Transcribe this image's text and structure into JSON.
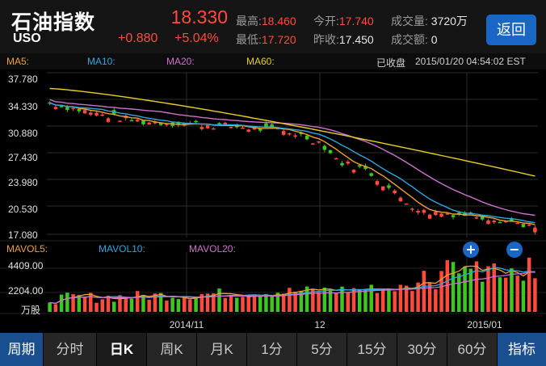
{
  "header": {
    "name": "石油指数",
    "code": "USO",
    "price": "18.330",
    "change": "+0.880",
    "change_pct": "+5.04%",
    "high_label": "最高:",
    "high": "18.460",
    "low_label": "最低:",
    "low": "17.720",
    "open_label": "今开:",
    "open": "17.740",
    "prev_label": "昨收:",
    "prev": "17.450",
    "vol_label": "成交量:",
    "vol": "3720万",
    "amt_label": "成交额:",
    "amt": "0",
    "back": "返回"
  },
  "ma_bar": {
    "ma5": "MA5:",
    "ma10": "MA10:",
    "ma20": "MA20:",
    "ma60": "MA60:",
    "status": "已收盘",
    "time": "2015/01/20 04:54:02 EST"
  },
  "colors": {
    "up": "#ff4a3c",
    "down": "#3cc81e",
    "ma5": "#f0a030",
    "ma10": "#2aa8e0",
    "ma20": "#d070d0",
    "ma60": "#e8d020",
    "grid": "#2c2c2c"
  },
  "chart_data": {
    "type": "candlestick",
    "price_axis": [
      "37.780",
      "34.330",
      "30.880",
      "27.430",
      "23.980",
      "20.530",
      "17.080"
    ],
    "price_range": [
      17.08,
      37.78
    ],
    "volume_legend": {
      "mavol5": "MAVOL5:",
      "mavol10": "MAVOL10:",
      "mavol20": "MAVOL20:"
    },
    "volume_axis": [
      "4409.00",
      "2204.00",
      "万股"
    ],
    "volume_range": [
      0,
      4409
    ],
    "x_labels": [
      "2014/11",
      "12",
      "2015/01"
    ],
    "zoom_in": "+",
    "zoom_out": "−"
  },
  "tabs": [
    {
      "label": "周期",
      "style": "blue"
    },
    {
      "label": "分时"
    },
    {
      "label": "日K",
      "style": "active"
    },
    {
      "label": "周K"
    },
    {
      "label": "月K"
    },
    {
      "label": "1分"
    },
    {
      "label": "5分"
    },
    {
      "label": "15分"
    },
    {
      "label": "30分"
    },
    {
      "label": "60分"
    },
    {
      "label": "指标",
      "style": "blue"
    }
  ]
}
